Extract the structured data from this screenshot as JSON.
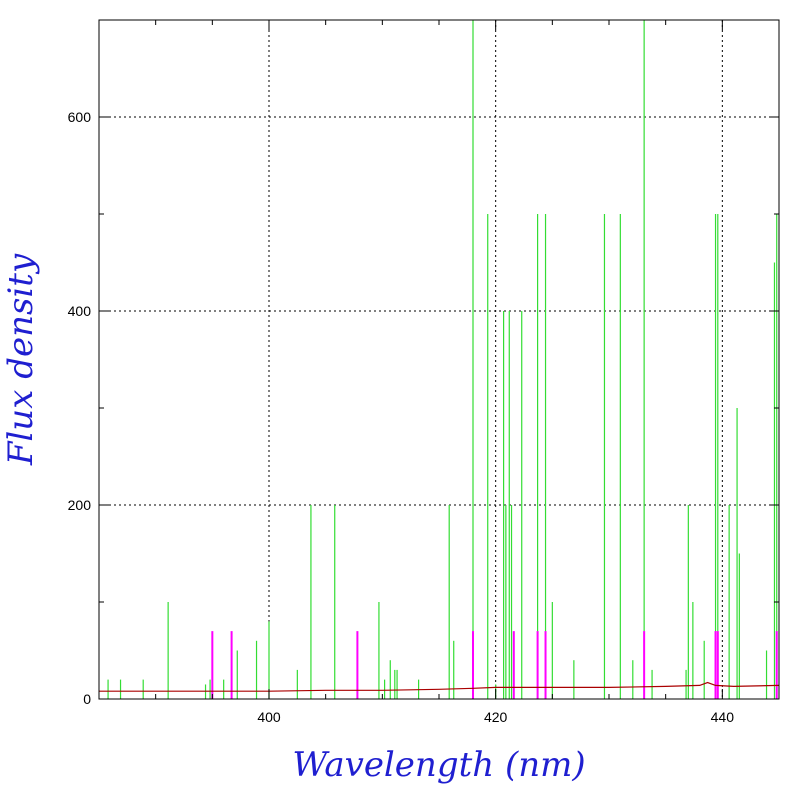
{
  "colors": {
    "green": "#33dd33",
    "magenta": "#ff00ff",
    "red_continuum": "#aa0000",
    "axis_title": "#1f1fd0",
    "grid": "#000000"
  },
  "chart_data": {
    "type": "line",
    "xlabel": "Wavelength (nm)",
    "ylabel": "Flux density",
    "xlim": [
      385,
      445
    ],
    "ylim": [
      0,
      700
    ],
    "x_ticks": [
      400,
      420,
      440
    ],
    "x_tick_labels": [
      "400",
      "420",
      "440"
    ],
    "y_ticks": [
      0,
      200,
      400,
      600
    ],
    "y_tick_labels": [
      "0",
      "200",
      "400",
      "600"
    ],
    "grid": true,
    "series": [
      {
        "color": "green",
        "style": "emission lines (sticks)",
        "lines": [
          {
            "x": 385.8,
            "y": 20
          },
          {
            "x": 386.9,
            "y": 20
          },
          {
            "x": 388.9,
            "y": 20
          },
          {
            "x": 391.1,
            "y": 100
          },
          {
            "x": 394.4,
            "y": 15
          },
          {
            "x": 394.8,
            "y": 20
          },
          {
            "x": 396.0,
            "y": 20
          },
          {
            "x": 397.2,
            "y": 50
          },
          {
            "x": 398.9,
            "y": 60
          },
          {
            "x": 400.0,
            "y": 80
          },
          {
            "x": 402.5,
            "y": 30
          },
          {
            "x": 403.7,
            "y": 200
          },
          {
            "x": 405.8,
            "y": 200
          },
          {
            "x": 409.7,
            "y": 100
          },
          {
            "x": 410.2,
            "y": 20
          },
          {
            "x": 410.7,
            "y": 40
          },
          {
            "x": 411.1,
            "y": 30
          },
          {
            "x": 411.3,
            "y": 30
          },
          {
            "x": 413.2,
            "y": 20
          },
          {
            "x": 415.9,
            "y": 200
          },
          {
            "x": 416.3,
            "y": 60
          },
          {
            "x": 418.0,
            "y": 700
          },
          {
            "x": 419.3,
            "y": 500
          },
          {
            "x": 420.0,
            "y": 15
          },
          {
            "x": 420.7,
            "y": 400
          },
          {
            "x": 420.9,
            "y": 200
          },
          {
            "x": 421.2,
            "y": 400
          },
          {
            "x": 421.4,
            "y": 200
          },
          {
            "x": 422.3,
            "y": 400
          },
          {
            "x": 423.7,
            "y": 500
          },
          {
            "x": 424.4,
            "y": 500
          },
          {
            "x": 425.0,
            "y": 100
          },
          {
            "x": 426.9,
            "y": 40
          },
          {
            "x": 429.6,
            "y": 500
          },
          {
            "x": 431.0,
            "y": 500
          },
          {
            "x": 432.1,
            "y": 40
          },
          {
            "x": 433.1,
            "y": 700
          },
          {
            "x": 433.8,
            "y": 30
          },
          {
            "x": 436.8,
            "y": 30
          },
          {
            "x": 437.0,
            "y": 200
          },
          {
            "x": 437.4,
            "y": 100
          },
          {
            "x": 438.4,
            "y": 60
          },
          {
            "x": 439.4,
            "y": 500
          },
          {
            "x": 439.6,
            "y": 500
          },
          {
            "x": 440.6,
            "y": 200
          },
          {
            "x": 441.3,
            "y": 300
          },
          {
            "x": 441.5,
            "y": 150
          },
          {
            "x": 443.9,
            "y": 50
          },
          {
            "x": 444.6,
            "y": 450
          },
          {
            "x": 444.8,
            "y": 500
          }
        ]
      },
      {
        "color": "magenta",
        "style": "emission lines (sticks)",
        "lines": [
          {
            "x": 395.0,
            "y": 70
          },
          {
            "x": 396.7,
            "y": 70
          },
          {
            "x": 407.8,
            "y": 70
          },
          {
            "x": 418.0,
            "y": 70
          },
          {
            "x": 421.6,
            "y": 70
          },
          {
            "x": 423.7,
            "y": 70
          },
          {
            "x": 424.4,
            "y": 70
          },
          {
            "x": 433.1,
            "y": 70
          },
          {
            "x": 439.4,
            "y": 70
          },
          {
            "x": 439.6,
            "y": 70
          },
          {
            "x": 444.8,
            "y": 70
          }
        ]
      },
      {
        "color": "red_continuum",
        "style": "continuum line",
        "points": [
          {
            "x": 385,
            "y": 8
          },
          {
            "x": 390,
            "y": 8
          },
          {
            "x": 395,
            "y": 8
          },
          {
            "x": 400,
            "y": 8
          },
          {
            "x": 405,
            "y": 9
          },
          {
            "x": 410,
            "y": 9
          },
          {
            "x": 415,
            "y": 10
          },
          {
            "x": 418,
            "y": 11
          },
          {
            "x": 420,
            "y": 12
          },
          {
            "x": 425,
            "y": 12
          },
          {
            "x": 430,
            "y": 12
          },
          {
            "x": 435,
            "y": 13
          },
          {
            "x": 438,
            "y": 14
          },
          {
            "x": 438.7,
            "y": 17
          },
          {
            "x": 439.4,
            "y": 14
          },
          {
            "x": 441,
            "y": 13
          },
          {
            "x": 445,
            "y": 14
          }
        ]
      }
    ]
  }
}
